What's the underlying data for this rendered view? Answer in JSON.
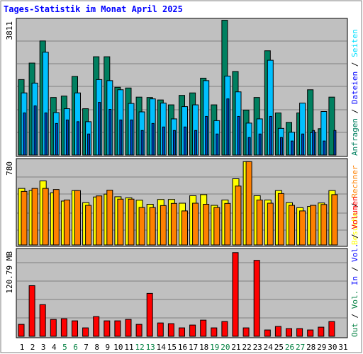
{
  "title": "Tages-Statistik im Monat April 2025",
  "colors": {
    "background": "#c0c0c0",
    "anfragen": "#008060",
    "dateien": "#00c0ff",
    "seiten": "#00e0ff",
    "besuche": "#ffff00",
    "rechner": "#ff8000",
    "volumen": "#ff0000",
    "weekend": "#008040",
    "weekday": "#000000",
    "title": "#0000ff"
  },
  "right_labels": {
    "panel1": [
      {
        "text": "Anfragen",
        "color": "#008060"
      },
      {
        "text": "/",
        "color": "#000000"
      },
      {
        "text": "Dateien",
        "color": "#0000ff"
      },
      {
        "text": "/",
        "color": "#000000"
      },
      {
        "text": "Seiten",
        "color": "#00e0ff"
      }
    ],
    "panel2": [
      {
        "text": "Besuche",
        "color": "#ffff00"
      },
      {
        "text": "/",
        "color": "#000000"
      },
      {
        "text": "Rechner",
        "color": "#ff8000"
      }
    ],
    "panel3": [
      {
        "text": "Out",
        "color": "#008040"
      },
      {
        "text": "/",
        "color": "#000000"
      },
      {
        "text": "Vol.",
        "color": "#008040"
      },
      {
        "text": "In",
        "color": "#0000ff"
      },
      {
        "text": "/",
        "color": "#000000"
      },
      {
        "text": "Vol.",
        "color": "#0000ff"
      },
      {
        "text": "/",
        "color": "#000000"
      },
      {
        "text": "Volumen",
        "color": "#ff0000"
      }
    ]
  },
  "chart_data": [
    {
      "type": "bar",
      "ymax_label": "3811",
      "ylim": [
        0,
        3811
      ],
      "grid": true,
      "categories": [
        "1",
        "2",
        "3",
        "4",
        "5",
        "6",
        "7",
        "8",
        "9",
        "10",
        "11",
        "12",
        "13",
        "14",
        "15",
        "16",
        "17",
        "18",
        "19",
        "20",
        "21",
        "22",
        "23",
        "24",
        "25",
        "26",
        "27",
        "28",
        "29",
        "30",
        "31"
      ],
      "series": [
        {
          "name": "Anfragen",
          "values": [
            2150,
            2620,
            3250,
            1640,
            1680,
            2240,
            1320,
            2800,
            2800,
            1930,
            1910,
            1650,
            1640,
            1570,
            1430,
            1700,
            1770,
            2190,
            1430,
            3840,
            2380,
            1280,
            1640,
            2970,
            1200,
            930,
            1200,
            1860,
            750,
            1650,
            0
          ]
        },
        {
          "name": "Dateien",
          "values": [
            1770,
            2050,
            2930,
            1210,
            1320,
            1770,
            950,
            2150,
            2120,
            1860,
            1470,
            1230,
            1600,
            1480,
            1030,
            1380,
            1430,
            2120,
            980,
            2250,
            1800,
            910,
            1030,
            2700,
            760,
            650,
            1480,
            640,
            1240,
            0,
            0
          ]
        },
        {
          "name": "Seiten",
          "values": [
            1200,
            1400,
            1200,
            900,
            1000,
            950,
            600,
            1500,
            1300,
            1000,
            1000,
            700,
            900,
            800,
            700,
            800,
            700,
            1100,
            600,
            1600,
            1100,
            500,
            600,
            1100,
            500,
            400,
            600,
            700,
            400,
            700,
            0
          ]
        }
      ]
    },
    {
      "type": "bar",
      "ymax_label": "780",
      "ylim": [
        0,
        780
      ],
      "grid": true,
      "categories": [
        "1",
        "2",
        "3",
        "4",
        "5",
        "6",
        "7",
        "8",
        "9",
        "10",
        "11",
        "12",
        "13",
        "14",
        "15",
        "16",
        "17",
        "18",
        "19",
        "20",
        "21",
        "22",
        "23",
        "24",
        "25",
        "26",
        "27",
        "28",
        "29",
        "30",
        "31"
      ],
      "series": [
        {
          "name": "Besuche",
          "values": [
            528,
            508,
            598,
            488,
            410,
            508,
            395,
            448,
            475,
            450,
            440,
            418,
            380,
            425,
            425,
            390,
            460,
            470,
            370,
            420,
            618,
            778,
            460,
            420,
            508,
            395,
            348,
            360,
            392,
            508,
            0
          ]
        },
        {
          "name": "Rechner",
          "values": [
            500,
            528,
            528,
            518,
            420,
            508,
            370,
            458,
            512,
            428,
            428,
            350,
            350,
            368,
            388,
            318,
            390,
            380,
            350,
            388,
            550,
            778,
            420,
            390,
            480,
            370,
            318,
            370,
            378,
            470,
            0
          ]
        }
      ]
    },
    {
      "type": "bar",
      "ymax_label": "120.79 MB",
      "ylim": [
        0,
        120.79
      ],
      "grid": true,
      "categories": [
        "1",
        "2",
        "3",
        "4",
        "5",
        "6",
        "7",
        "8",
        "9",
        "10",
        "11",
        "12",
        "13",
        "14",
        "15",
        "16",
        "17",
        "18",
        "19",
        "20",
        "21",
        "22",
        "23",
        "24",
        "25",
        "26",
        "27",
        "28",
        "29",
        "30",
        "31"
      ],
      "series": [
        {
          "name": "Volumen",
          "values": [
            17,
            72,
            45,
            24,
            25,
            22,
            12,
            28,
            22,
            22,
            24,
            17,
            61,
            19,
            18,
            12,
            16,
            23,
            12,
            21,
            119,
            12,
            108,
            9,
            14,
            11,
            11,
            9,
            13,
            21,
            0
          ]
        }
      ]
    }
  ],
  "weekend_days": [
    "5",
    "6",
    "12",
    "13",
    "19",
    "20",
    "26",
    "27"
  ]
}
